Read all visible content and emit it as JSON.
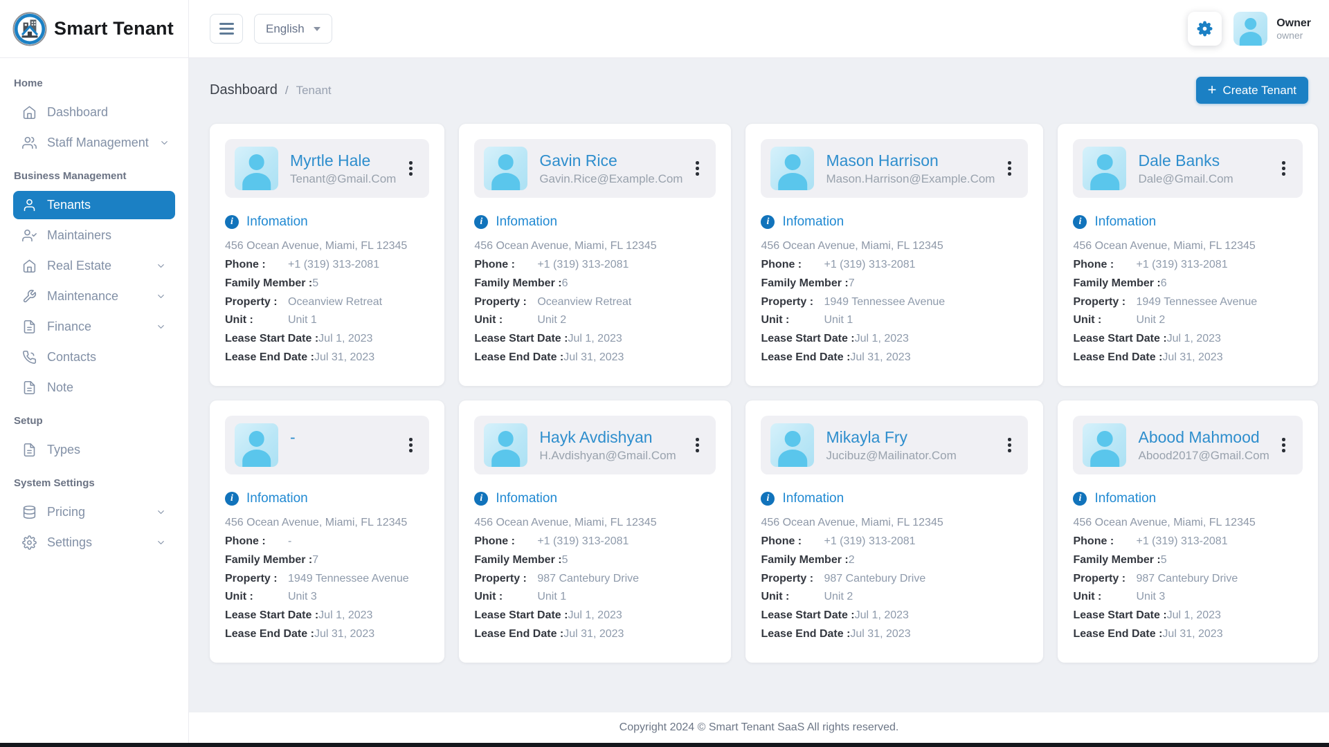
{
  "app": {
    "name": "Smart Tenant"
  },
  "topbar": {
    "language": "English",
    "user_name": "Owner",
    "user_role": "owner"
  },
  "breadcrumb": {
    "current": "Dashboard",
    "separator": "/",
    "page": "Tenant"
  },
  "actions": {
    "create_tenant": "Create Tenant",
    "plus_icon": "+"
  },
  "sidebar": {
    "sections": [
      {
        "label": "Home",
        "items": [
          {
            "label": "Dashboard",
            "icon": "house",
            "chevron": false
          },
          {
            "label": "Staff Management",
            "icon": "users",
            "chevron": true
          }
        ]
      },
      {
        "label": "Business Management",
        "items": [
          {
            "label": "Tenants",
            "icon": "person",
            "chevron": false,
            "active": true
          },
          {
            "label": "Maintainers",
            "icon": "person-check",
            "chevron": false
          },
          {
            "label": "Real Estate",
            "icon": "house",
            "chevron": true
          },
          {
            "label": "Maintenance",
            "icon": "wrench",
            "chevron": true
          },
          {
            "label": "Finance",
            "icon": "file",
            "chevron": true
          },
          {
            "label": "Contacts",
            "icon": "phone",
            "chevron": false
          },
          {
            "label": "Note",
            "icon": "file",
            "chevron": false
          }
        ]
      },
      {
        "label": "Setup",
        "items": [
          {
            "label": "Types",
            "icon": "file",
            "chevron": false
          }
        ]
      },
      {
        "label": "System Settings",
        "items": [
          {
            "label": "Pricing",
            "icon": "database",
            "chevron": true
          },
          {
            "label": "Settings",
            "icon": "gear",
            "chevron": true
          }
        ]
      }
    ]
  },
  "card_labels": {
    "information": "Infomation",
    "info_glyph": "i",
    "phone": "Phone :",
    "family_member": "Family Member :",
    "property": "Property :",
    "unit": "Unit :",
    "lease_start": "Lease Start Date :",
    "lease_end": "Lease End Date :"
  },
  "cards": [
    {
      "name": "Myrtle Hale",
      "email": "Tenant@Gmail.Com",
      "address": "456 Ocean Avenue, Miami, FL 12345",
      "phone": "+1 (319) 313-2081",
      "family_member": "5",
      "property": "Oceanview Retreat",
      "unit": "Unit 1",
      "lease_start": "Jul 1, 2023",
      "lease_end": "Jul 31, 2023"
    },
    {
      "name": "Gavin Rice",
      "email": "Gavin.Rice@Example.Com",
      "address": "456 Ocean Avenue, Miami, FL 12345",
      "phone": "+1 (319) 313-2081",
      "family_member": "6",
      "property": "Oceanview Retreat",
      "unit": "Unit 2",
      "lease_start": "Jul 1, 2023",
      "lease_end": "Jul 31, 2023"
    },
    {
      "name": "Mason Harrison",
      "email": "Mason.Harrison@Example.Com",
      "address": "456 Ocean Avenue, Miami, FL 12345",
      "phone": "+1 (319) 313-2081",
      "family_member": "7",
      "property": "1949 Tennessee Avenue",
      "unit": "Unit 1",
      "lease_start": "Jul 1, 2023",
      "lease_end": "Jul 31, 2023"
    },
    {
      "name": "Dale Banks",
      "email": "Dale@Gmail.Com",
      "address": "456 Ocean Avenue, Miami, FL 12345",
      "phone": "+1 (319) 313-2081",
      "family_member": "6",
      "property": "1949 Tennessee Avenue",
      "unit": "Unit 2",
      "lease_start": "Jul 1, 2023",
      "lease_end": "Jul 31, 2023"
    },
    {
      "name": "-",
      "email": "",
      "address": "456 Ocean Avenue, Miami, FL 12345",
      "phone": "-",
      "family_member": "7",
      "property": "1949 Tennessee Avenue",
      "unit": "Unit 3",
      "lease_start": "Jul 1, 2023",
      "lease_end": "Jul 31, 2023"
    },
    {
      "name": "Hayk Avdishyan",
      "email": "H.Avdishyan@Gmail.Com",
      "address": "456 Ocean Avenue, Miami, FL 12345",
      "phone": "+1 (319) 313-2081",
      "family_member": "5",
      "property": "987 Cantebury Drive",
      "unit": "Unit 1",
      "lease_start": "Jul 1, 2023",
      "lease_end": "Jul 31, 2023"
    },
    {
      "name": "Mikayla Fry",
      "email": "Jucibuz@Mailinator.Com",
      "address": "456 Ocean Avenue, Miami, FL 12345",
      "phone": "+1 (319) 313-2081",
      "family_member": "2",
      "property": "987 Cantebury Drive",
      "unit": "Unit 2",
      "lease_start": "Jul 1, 2023",
      "lease_end": "Jul 31, 2023"
    },
    {
      "name": "Abood Mahmood",
      "email": "Abood2017@Gmail.Com",
      "address": "456 Ocean Avenue, Miami, FL 12345",
      "phone": "+1 (319) 313-2081",
      "family_member": "5",
      "property": "987 Cantebury Drive",
      "unit": "Unit 3",
      "lease_start": "Jul 1, 2023",
      "lease_end": "Jul 31, 2023"
    }
  ],
  "footer": {
    "copyright": "Copyright 2024 © Smart Tenant SaaS All rights reserved."
  },
  "colors": {
    "primary": "#1b80c4",
    "link_blue": "#2e8ecd",
    "page_bg": "#eef0f4",
    "card_header_bg": "#f0f0f4",
    "avatar_blue": "#5ac6ec"
  }
}
